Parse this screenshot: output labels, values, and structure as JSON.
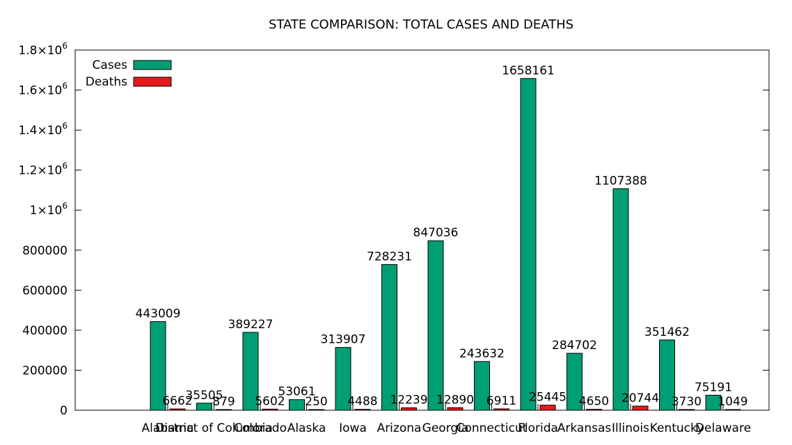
{
  "chart_data": {
    "type": "bar",
    "title": "STATE COMPARISON: TOTAL CASES AND DEATHS",
    "xlabel": "",
    "ylabel": "",
    "ylim": [
      0,
      1800000
    ],
    "y_ticks": [
      {
        "value": 0,
        "label": "0"
      },
      {
        "value": 200000,
        "label": "200000"
      },
      {
        "value": 400000,
        "label": "400000"
      },
      {
        "value": 600000,
        "label": "600000"
      },
      {
        "value": 800000,
        "label": "800000"
      },
      {
        "value": 1000000,
        "label": "1×10",
        "sup": "6"
      },
      {
        "value": 1200000,
        "label": "1.2×10",
        "sup": "6"
      },
      {
        "value": 1400000,
        "label": "1.4×10",
        "sup": "6"
      },
      {
        "value": 1600000,
        "label": "1.6×10",
        "sup": "6"
      },
      {
        "value": 1800000,
        "label": "1.8×10",
        "sup": "6"
      }
    ],
    "legend_position": "top-left",
    "grid": false,
    "categories": [
      "Alabama",
      "District of Columbia",
      "Colorado",
      "Alaska",
      "Iowa",
      "Arizona",
      "Georgia",
      "Connecticut",
      "Florida",
      "Arkansas",
      "Illinois",
      "Kentucky",
      "Delaware"
    ],
    "series": [
      {
        "name": "Cases",
        "color": "#009e73",
        "values": [
          443009,
          35505,
          389227,
          53061,
          313907,
          728231,
          847036,
          243632,
          1658161,
          284702,
          1107388,
          351462,
          75191
        ]
      },
      {
        "name": "Deaths",
        "color": "#e41a1c",
        "values": [
          6662,
          879,
          5602,
          250,
          4488,
          12239,
          12890,
          6911,
          25445,
          4650,
          20744,
          3730,
          1049
        ]
      }
    ]
  }
}
